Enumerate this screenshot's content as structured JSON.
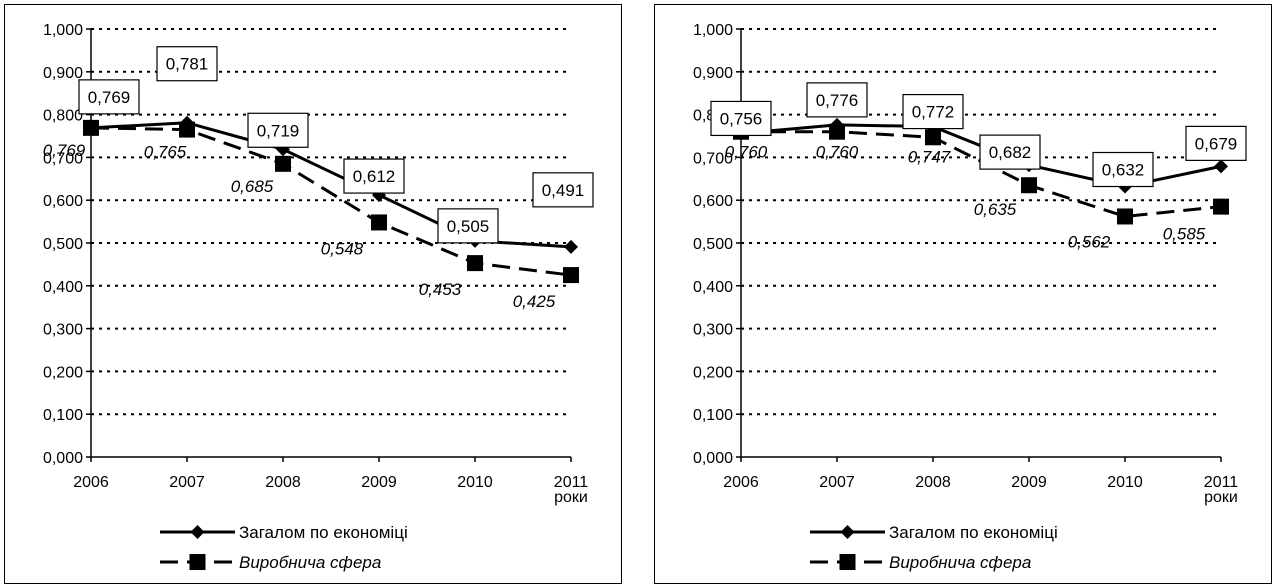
{
  "chart_data": [
    {
      "type": "line",
      "x": [
        "2006",
        "2007",
        "2008",
        "2009",
        "2010",
        "2011"
      ],
      "x_unit_label": "роки",
      "ylim": [
        0,
        1
      ],
      "y_ticks": [
        "0,000",
        "0,100",
        "0,200",
        "0,300",
        "0,400",
        "0,500",
        "0,600",
        "0,700",
        "0,800",
        "0,900",
        "1,000"
      ],
      "grid": "horizontal-dotted",
      "legend_position": "bottom",
      "series": [
        {
          "name": "Загалом по економіці",
          "style": "solid",
          "marker": "diamond",
          "values": [
            0.769,
            0.781,
            0.719,
            0.612,
            0.505,
            0.491
          ],
          "labels": [
            "0,769",
            "0,781",
            "0,719",
            "0,612",
            "0,505",
            "0,491"
          ]
        },
        {
          "name": "Виробнича сфера",
          "style": "dashed",
          "marker": "square",
          "values": [
            0.769,
            0.765,
            0.685,
            0.548,
            0.453,
            0.425
          ],
          "labels": [
            "0,769",
            "0,765",
            "0,685",
            "0,548",
            "0,453",
            "0,425"
          ]
        }
      ]
    },
    {
      "type": "line",
      "x": [
        "2006",
        "2007",
        "2008",
        "2009",
        "2010",
        "2011"
      ],
      "x_unit_label": "роки",
      "ylim": [
        0,
        1
      ],
      "y_ticks": [
        "0,000",
        "0,100",
        "0,200",
        "0,300",
        "0,400",
        "0,500",
        "0,600",
        "0,700",
        "0,800",
        "0,900",
        "1,000"
      ],
      "grid": "horizontal-dotted",
      "legend_position": "bottom",
      "series": [
        {
          "name": "Загалом по економіці",
          "style": "solid",
          "marker": "diamond",
          "values": [
            0.756,
            0.776,
            0.772,
            0.682,
            0.632,
            0.679
          ],
          "labels": [
            "0,756",
            "0,776",
            "0,772",
            "0,682",
            "0,632",
            "0,679"
          ]
        },
        {
          "name": "Виробнича сфера",
          "style": "dashed",
          "marker": "square",
          "values": [
            0.76,
            0.76,
            0.747,
            0.635,
            0.562,
            0.585
          ],
          "labels": [
            "0,760",
            "0,760",
            "0,747",
            "0,635",
            "0,562",
            "0,585"
          ]
        }
      ]
    }
  ]
}
